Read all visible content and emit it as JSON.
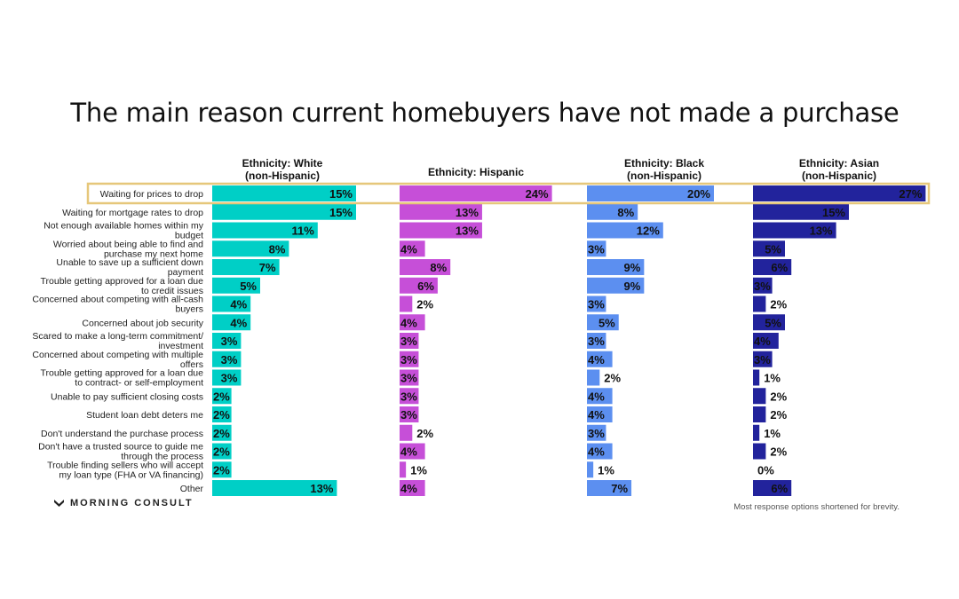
{
  "chart_data": {
    "type": "bar",
    "orientation": "horizontal",
    "title": "The main reason current homebuyers have not made a purchase",
    "categories": [
      "Waiting for prices to drop",
      "Waiting for mortgage rates to drop",
      "Not enough available homes within my budget",
      "Worried about being able to find and purchase my next home",
      "Unable to save up a sufficient down payment",
      "Trouble getting approved for a loan due to credit issues",
      "Concerned about competing with all-cash buyers",
      "Concerned about job security",
      "Scared to make a long-term commitment/ investment",
      "Concerned about competing with multiple offers",
      "Trouble getting approved for a loan due to contract- or self-employment",
      "Unable to pay sufficient closing costs",
      "Student loan debt deters me",
      "Don't understand the purchase process",
      "Don't have a trusted source to guide me through the process",
      "Trouble finding sellers who will accept my loan type (FHA or VA financing)",
      "Other"
    ],
    "highlighted_category": "Waiting for prices to drop",
    "value_format": "%",
    "series": [
      {
        "name": "Ethnicity: White (non-Hispanic)",
        "color": "#00cfc6",
        "values": [
          15,
          15,
          11,
          8,
          7,
          5,
          4,
          4,
          3,
          3,
          3,
          2,
          2,
          2,
          2,
          2,
          13
        ]
      },
      {
        "name": "Ethnicity: Hispanic",
        "color": "#c64fd8",
        "values": [
          24,
          13,
          13,
          4,
          8,
          6,
          2,
          4,
          3,
          3,
          3,
          3,
          3,
          2,
          4,
          1,
          4
        ]
      },
      {
        "name": "Ethnicity: Black (non-Hispanic)",
        "color": "#5c8ff0",
        "values": [
          20,
          8,
          12,
          3,
          9,
          9,
          3,
          5,
          3,
          4,
          2,
          4,
          4,
          3,
          4,
          1,
          7
        ]
      },
      {
        "name": "Ethnicity: Asian (non-Hispanic)",
        "color": "#22239c",
        "values": [
          27,
          15,
          13,
          5,
          6,
          3,
          2,
          5,
          4,
          3,
          1,
          2,
          2,
          1,
          2,
          0,
          6
        ]
      }
    ],
    "highlight_color": "#e6c77a"
  },
  "footnote": "Most response options shortened for brevity.",
  "logo": "MORNING CONSULT"
}
